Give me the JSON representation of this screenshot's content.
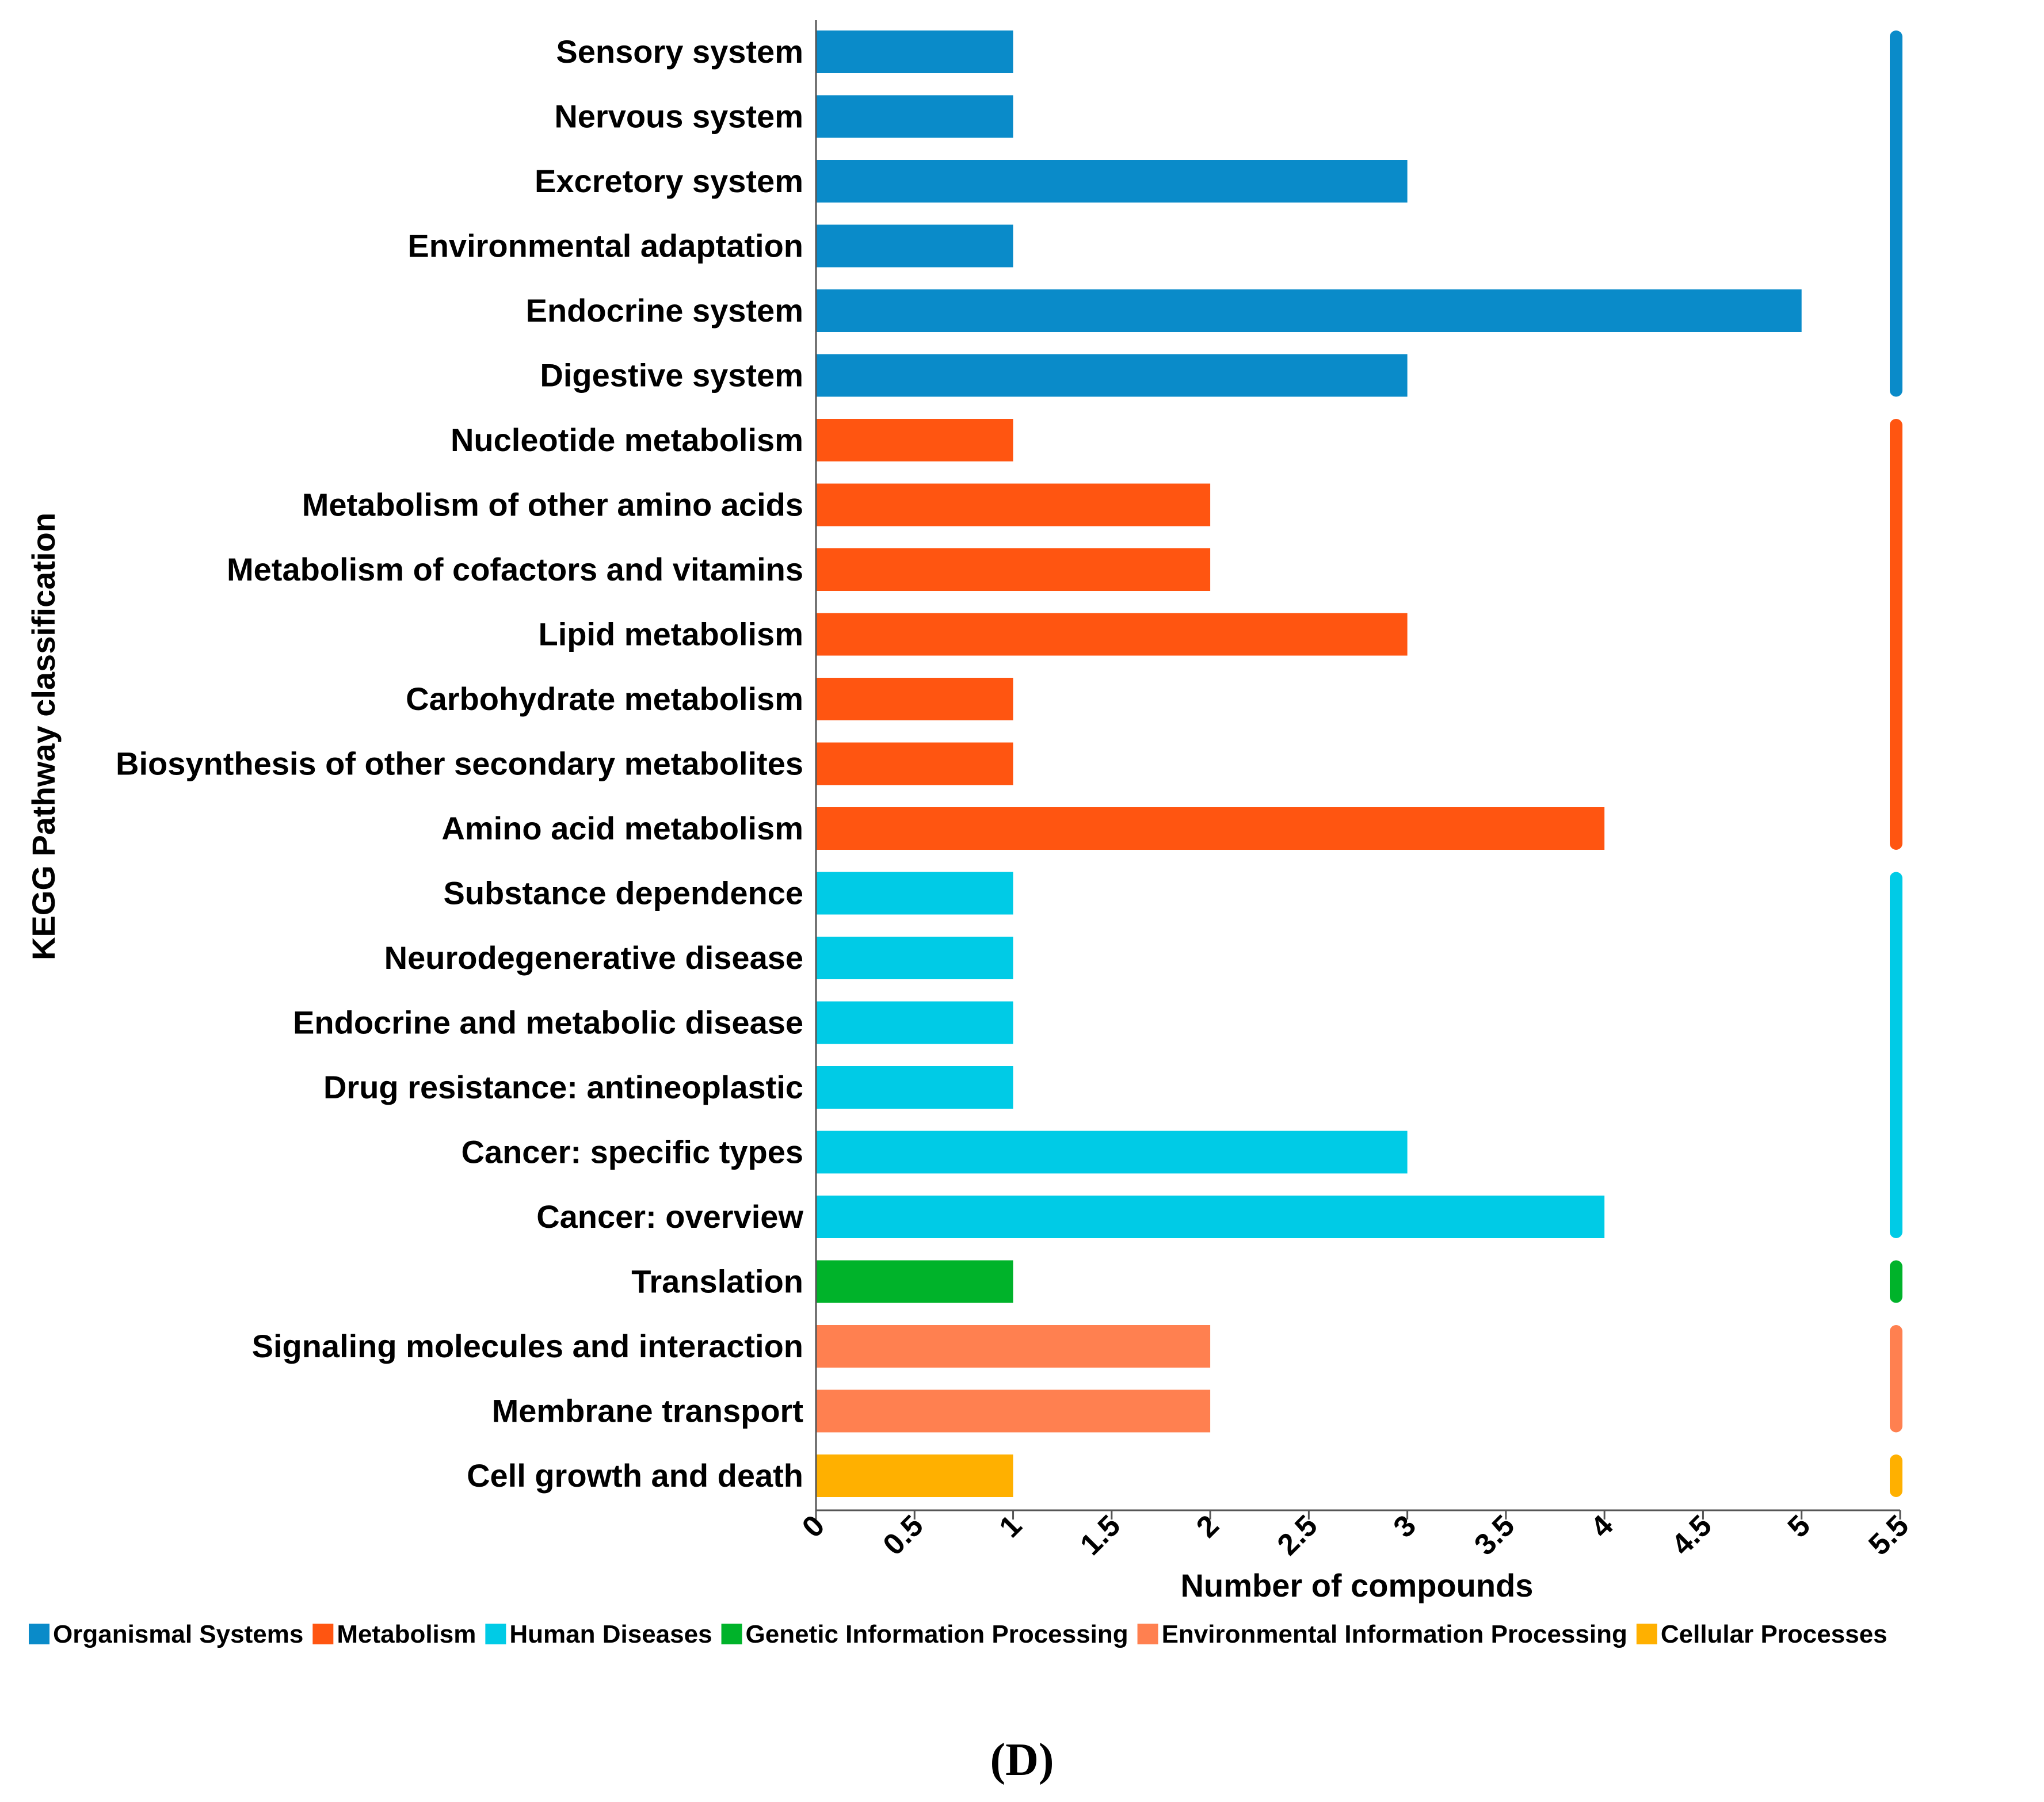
{
  "chart_data": {
    "type": "bar",
    "orientation": "horizontal",
    "xlabel": "Number of compounds",
    "ylabel": "KEGG Pathway classification",
    "xlim": [
      0,
      5.5
    ],
    "xticks": [
      "0",
      "0.5",
      "1",
      "1.5",
      "2",
      "2.5",
      "3",
      "3.5",
      "4",
      "4.5",
      "5",
      "5.5"
    ],
    "categories": [
      "Sensory system",
      "Nervous system",
      "Excretory system",
      "Environmental adaptation",
      "Endocrine system",
      "Digestive system",
      "Nucleotide metabolism",
      "Metabolism of other amino acids",
      "Metabolism of cofactors and vitamins",
      "Lipid metabolism",
      "Carbohydrate metabolism",
      "Biosynthesis of other secondary metabolites",
      "Amino acid metabolism",
      "Substance dependence",
      "Neurodegenerative disease",
      "Endocrine and metabolic disease",
      "Drug resistance: antineoplastic",
      "Cancer: specific types",
      "Cancer: overview",
      "Translation",
      "Signaling molecules and interaction",
      "Membrane transport",
      "Cell growth and death"
    ],
    "values": [
      1,
      1,
      3,
      1,
      5,
      3,
      1,
      2,
      2,
      3,
      1,
      1,
      4,
      1,
      1,
      1,
      1,
      3,
      4,
      1,
      2,
      2,
      1
    ],
    "groups": [
      0,
      0,
      0,
      0,
      0,
      0,
      1,
      1,
      1,
      1,
      1,
      1,
      1,
      2,
      2,
      2,
      2,
      2,
      2,
      3,
      4,
      4,
      5
    ],
    "legend": [
      {
        "name": "Organismal Systems",
        "color": "#0a8bc9"
      },
      {
        "name": "Metabolism",
        "color": "#ff5511"
      },
      {
        "name": "Human Diseases",
        "color": "#00cbe6"
      },
      {
        "name": "Genetic Information Processing",
        "color": "#00b32a"
      },
      {
        "name": "Environmental Information Processing",
        "color": "#ff8050"
      },
      {
        "name": "Cellular Processes",
        "color": "#ffb000"
      }
    ],
    "legend_position": "bottom",
    "grid": false
  },
  "panel_label": "(D)"
}
